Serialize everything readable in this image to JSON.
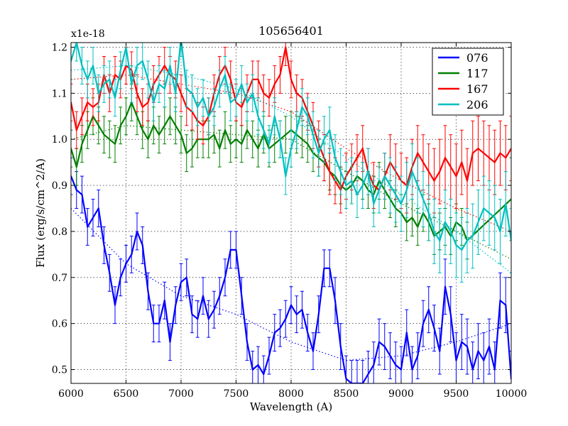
{
  "chart_data": {
    "type": "line",
    "title": "105656401",
    "xlabel": "Wavelength (A)",
    "ylabel": "Flux (erg/s/cm^2/A)",
    "y_offset_label": "x1e-18",
    "xlim": [
      6000,
      10000
    ],
    "ylim": [
      0.47,
      1.21
    ],
    "x_ticks": [
      6000,
      6500,
      7000,
      7500,
      8000,
      8500,
      9000,
      9500,
      10000
    ],
    "y_ticks": [
      0.5,
      0.6,
      0.7,
      0.8,
      0.9,
      1.0,
      1.1,
      1.2
    ],
    "y_tick_labels": [
      "0.5",
      "0.6",
      "0.7",
      "0.8",
      "0.9",
      "1.0",
      "1.1",
      "1.2"
    ],
    "grid": true,
    "legend_position": "top-right",
    "series": [
      {
        "name": "076",
        "color": "#0000ff",
        "x": [
          6000,
          6050,
          6100,
          6150,
          6200,
          6250,
          6300,
          6350,
          6400,
          6450,
          6500,
          6550,
          6600,
          6650,
          6700,
          6750,
          6800,
          6850,
          6900,
          6950,
          7000,
          7050,
          7100,
          7150,
          7200,
          7250,
          7300,
          7350,
          7400,
          7450,
          7500,
          7550,
          7600,
          7650,
          7700,
          7750,
          7800,
          7850,
          7900,
          7950,
          8000,
          8050,
          8100,
          8150,
          8200,
          8250,
          8300,
          8350,
          8400,
          8450,
          8500,
          8550,
          8600,
          8650,
          8700,
          8750,
          8800,
          8850,
          8900,
          8950,
          9000,
          9050,
          9100,
          9150,
          9200,
          9250,
          9300,
          9350,
          9400,
          9450,
          9500,
          9550,
          9600,
          9650,
          9700,
          9750,
          9800,
          9850,
          9900,
          9950,
          10000
        ],
        "y": [
          0.92,
          0.89,
          0.88,
          0.81,
          0.83,
          0.85,
          0.77,
          0.71,
          0.64,
          0.7,
          0.73,
          0.75,
          0.8,
          0.77,
          0.67,
          0.6,
          0.6,
          0.65,
          0.56,
          0.64,
          0.69,
          0.7,
          0.62,
          0.61,
          0.66,
          0.61,
          0.63,
          0.66,
          0.7,
          0.76,
          0.76,
          0.66,
          0.56,
          0.5,
          0.51,
          0.49,
          0.53,
          0.58,
          0.59,
          0.61,
          0.64,
          0.62,
          0.63,
          0.58,
          0.54,
          0.62,
          0.72,
          0.72,
          0.65,
          0.55,
          0.48,
          0.47,
          0.47,
          0.47,
          0.49,
          0.51,
          0.56,
          0.55,
          0.53,
          0.51,
          0.5,
          0.58,
          0.5,
          0.53,
          0.6,
          0.63,
          0.59,
          0.54,
          0.68,
          0.62,
          0.52,
          0.56,
          0.55,
          0.5,
          0.54,
          0.52,
          0.55,
          0.5,
          0.65,
          0.64,
          0.48
        ],
        "err": [
          0.04,
          0.04,
          0.04,
          0.04,
          0.04,
          0.04,
          0.04,
          0.04,
          0.04,
          0.04,
          0.04,
          0.04,
          0.04,
          0.04,
          0.04,
          0.04,
          0.04,
          0.04,
          0.04,
          0.04,
          0.04,
          0.04,
          0.04,
          0.04,
          0.04,
          0.04,
          0.04,
          0.04,
          0.04,
          0.04,
          0.04,
          0.04,
          0.04,
          0.04,
          0.04,
          0.04,
          0.04,
          0.04,
          0.04,
          0.04,
          0.04,
          0.04,
          0.04,
          0.04,
          0.04,
          0.04,
          0.04,
          0.04,
          0.05,
          0.05,
          0.05,
          0.05,
          0.05,
          0.05,
          0.05,
          0.05,
          0.05,
          0.05,
          0.05,
          0.05,
          0.05,
          0.05,
          0.05,
          0.05,
          0.05,
          0.05,
          0.05,
          0.05,
          0.06,
          0.06,
          0.06,
          0.06,
          0.06,
          0.06,
          0.06,
          0.06,
          0.06,
          0.06,
          0.06,
          0.06,
          0.06
        ],
        "fit_x": [
          6000,
          6500,
          7000,
          7500,
          8000,
          8500,
          9000,
          9500,
          10000
        ],
        "fit_y": [
          0.85,
          0.73,
          0.66,
          0.62,
          0.56,
          0.52,
          0.53,
          0.56,
          0.6
        ]
      },
      {
        "name": "117",
        "color": "#008000",
        "x": [
          6000,
          6050,
          6100,
          6150,
          6200,
          6250,
          6300,
          6350,
          6400,
          6450,
          6500,
          6550,
          6600,
          6650,
          6700,
          6750,
          6800,
          6850,
          6900,
          6950,
          7000,
          7050,
          7100,
          7150,
          7200,
          7250,
          7300,
          7350,
          7400,
          7450,
          7500,
          7550,
          7600,
          7650,
          7700,
          7750,
          7800,
          7850,
          7900,
          7950,
          8000,
          8050,
          8100,
          8150,
          8200,
          8250,
          8300,
          8350,
          8400,
          8450,
          8500,
          8550,
          8600,
          8650,
          8700,
          8750,
          8800,
          8850,
          8900,
          8950,
          9000,
          9050,
          9100,
          9150,
          9200,
          9250,
          9300,
          9350,
          9400,
          9450,
          9500,
          9550,
          9600,
          10000
        ],
        "y": [
          0.98,
          0.94,
          0.99,
          1.02,
          1.05,
          1.03,
          1.01,
          1.0,
          0.99,
          1.03,
          1.05,
          1.08,
          1.05,
          1.02,
          1.0,
          1.03,
          1.01,
          1.03,
          1.05,
          1.03,
          1.01,
          0.97,
          0.98,
          1.0,
          1.0,
          1.0,
          1.01,
          0.98,
          1.02,
          0.99,
          1.0,
          0.99,
          1.02,
          1.0,
          0.98,
          1.01,
          0.98,
          0.99,
          1.0,
          1.01,
          1.02,
          1.01,
          1.0,
          0.99,
          0.97,
          0.96,
          0.95,
          0.93,
          0.92,
          0.9,
          0.89,
          0.9,
          0.92,
          0.91,
          0.89,
          0.88,
          0.91,
          0.89,
          0.87,
          0.85,
          0.84,
          0.82,
          0.83,
          0.81,
          0.84,
          0.82,
          0.79,
          0.8,
          0.81,
          0.79,
          0.82,
          0.81,
          0.78,
          0.87
        ],
        "err": [
          0.04,
          0.04,
          0.04,
          0.04,
          0.04,
          0.04,
          0.04,
          0.04,
          0.04,
          0.04,
          0.04,
          0.04,
          0.04,
          0.04,
          0.04,
          0.04,
          0.04,
          0.04,
          0.04,
          0.04,
          0.04,
          0.04,
          0.04,
          0.04,
          0.04,
          0.04,
          0.04,
          0.04,
          0.04,
          0.04,
          0.04,
          0.04,
          0.04,
          0.04,
          0.04,
          0.04,
          0.04,
          0.04,
          0.04,
          0.04,
          0.04,
          0.04,
          0.04,
          0.04,
          0.04,
          0.04,
          0.04,
          0.04,
          0.04,
          0.04,
          0.04,
          0.04,
          0.04,
          0.04,
          0.04,
          0.04,
          0.04,
          0.04,
          0.04,
          0.04,
          0.04,
          0.04,
          0.04,
          0.04,
          0.04,
          0.04,
          0.04,
          0.04,
          0.04,
          0.04,
          0.04,
          0.04,
          0.04,
          0.09
        ],
        "fit_x": [
          6000,
          6500,
          7000,
          7500,
          8000,
          8500,
          9000,
          9500,
          10000
        ],
        "fit_y": [
          1.0,
          1.03,
          1.02,
          1.01,
          1.0,
          0.93,
          0.86,
          0.8,
          0.74
        ]
      },
      {
        "name": "167",
        "color": "#ff0000",
        "x": [
          6000,
          6050,
          6100,
          6150,
          6200,
          6250,
          6300,
          6350,
          6400,
          6450,
          6500,
          6550,
          6600,
          6650,
          6700,
          6750,
          6800,
          6850,
          6900,
          6950,
          7000,
          7050,
          7100,
          7150,
          7200,
          7250,
          7300,
          7350,
          7400,
          7450,
          7500,
          7550,
          7600,
          7650,
          7700,
          7750,
          7800,
          7850,
          7900,
          7950,
          8000,
          8050,
          8100,
          8150,
          8200,
          8250,
          8300,
          8350,
          8400,
          8450,
          8500,
          8550,
          8600,
          8650,
          8700,
          8750,
          8800,
          8850,
          8900,
          8950,
          9000,
          9050,
          9100,
          9150,
          9200,
          9250,
          9300,
          9350,
          9400,
          9450,
          9500,
          9550,
          9600,
          9650,
          9700,
          9750,
          9800,
          9850,
          9900,
          9950,
          10000
        ],
        "y": [
          1.08,
          1.02,
          1.05,
          1.08,
          1.07,
          1.08,
          1.14,
          1.1,
          1.14,
          1.13,
          1.16,
          1.15,
          1.1,
          1.07,
          1.08,
          1.12,
          1.14,
          1.16,
          1.14,
          1.13,
          1.1,
          1.07,
          1.06,
          1.04,
          1.03,
          1.05,
          1.1,
          1.14,
          1.16,
          1.13,
          1.08,
          1.07,
          1.1,
          1.13,
          1.13,
          1.1,
          1.09,
          1.12,
          1.14,
          1.2,
          1.13,
          1.1,
          1.09,
          1.06,
          1.03,
          0.99,
          0.96,
          0.93,
          0.91,
          0.89,
          0.92,
          0.94,
          0.96,
          0.98,
          0.93,
          0.9,
          0.89,
          0.92,
          0.95,
          0.93,
          0.91,
          0.9,
          0.94,
          0.97,
          0.95,
          0.93,
          0.91,
          0.93,
          0.96,
          0.94,
          0.92,
          0.95,
          0.91,
          0.97,
          0.98,
          0.97,
          0.96,
          0.95,
          0.97,
          0.96,
          0.98
        ],
        "err": [
          0.04,
          0.04,
          0.04,
          0.04,
          0.04,
          0.04,
          0.04,
          0.04,
          0.04,
          0.04,
          0.04,
          0.04,
          0.04,
          0.04,
          0.04,
          0.04,
          0.04,
          0.04,
          0.04,
          0.04,
          0.04,
          0.04,
          0.04,
          0.04,
          0.04,
          0.04,
          0.04,
          0.04,
          0.04,
          0.04,
          0.04,
          0.04,
          0.04,
          0.04,
          0.04,
          0.04,
          0.04,
          0.04,
          0.04,
          0.04,
          0.04,
          0.04,
          0.04,
          0.04,
          0.05,
          0.05,
          0.05,
          0.05,
          0.05,
          0.05,
          0.05,
          0.05,
          0.05,
          0.05,
          0.05,
          0.05,
          0.05,
          0.05,
          0.06,
          0.06,
          0.06,
          0.06,
          0.06,
          0.06,
          0.06,
          0.06,
          0.07,
          0.07,
          0.07,
          0.07,
          0.07,
          0.07,
          0.07,
          0.07,
          0.07,
          0.07,
          0.07,
          0.07,
          0.07,
          0.07,
          0.07
        ],
        "fit_x": [
          6000,
          6500,
          7000,
          7500,
          8000,
          8500,
          9000,
          9500,
          10000
        ],
        "fit_y": [
          1.13,
          1.14,
          1.12,
          1.1,
          1.06,
          0.98,
          0.91,
          0.85,
          0.8
        ]
      },
      {
        "name": "206",
        "color": "#00bfbf",
        "x": [
          6000,
          6050,
          6100,
          6150,
          6200,
          6250,
          6300,
          6350,
          6400,
          6450,
          6500,
          6550,
          6600,
          6650,
          6700,
          6750,
          6800,
          6850,
          6900,
          6950,
          7000,
          7050,
          7100,
          7150,
          7200,
          7250,
          7300,
          7350,
          7400,
          7450,
          7500,
          7550,
          7600,
          7650,
          7700,
          7750,
          7800,
          7850,
          7900,
          7950,
          8000,
          8050,
          8100,
          8150,
          8200,
          8250,
          8300,
          8350,
          8400,
          8450,
          8500,
          8550,
          8600,
          8650,
          8700,
          8750,
          8800,
          8850,
          8900,
          8950,
          9000,
          9050,
          9100,
          9150,
          9200,
          9250,
          9300,
          9350,
          9400,
          9450,
          9500,
          9550,
          9600,
          9650,
          9700,
          9750,
          9800,
          9850,
          9900,
          9950,
          10000
        ],
        "y": [
          1.17,
          1.21,
          1.16,
          1.13,
          1.16,
          1.1,
          1.12,
          1.13,
          1.09,
          1.15,
          1.2,
          1.12,
          1.16,
          1.17,
          1.13,
          1.08,
          1.12,
          1.11,
          1.16,
          1.1,
          1.22,
          1.11,
          1.1,
          1.07,
          1.09,
          1.05,
          1.07,
          1.11,
          1.14,
          1.08,
          1.09,
          1.12,
          1.08,
          1.1,
          1.05,
          1.02,
          0.99,
          1.05,
          1.0,
          0.92,
          0.98,
          1.02,
          1.07,
          1.05,
          1.01,
          0.97,
          1.0,
          1.02,
          0.96,
          0.93,
          0.9,
          0.91,
          0.88,
          0.9,
          0.93,
          0.86,
          0.89,
          0.92,
          0.9,
          0.88,
          0.86,
          0.89,
          0.93,
          0.9,
          0.87,
          0.84,
          0.8,
          0.78,
          0.82,
          0.8,
          0.77,
          0.76,
          0.78,
          0.79,
          0.82,
          0.85,
          0.84,
          0.83,
          0.8,
          0.86,
          0.78
        ],
        "err": [
          0.04,
          0.04,
          0.04,
          0.04,
          0.04,
          0.04,
          0.04,
          0.04,
          0.04,
          0.04,
          0.04,
          0.04,
          0.04,
          0.04,
          0.04,
          0.04,
          0.04,
          0.04,
          0.04,
          0.04,
          0.04,
          0.04,
          0.04,
          0.04,
          0.04,
          0.04,
          0.04,
          0.04,
          0.04,
          0.04,
          0.04,
          0.04,
          0.04,
          0.04,
          0.04,
          0.04,
          0.04,
          0.04,
          0.04,
          0.04,
          0.04,
          0.04,
          0.04,
          0.04,
          0.05,
          0.05,
          0.05,
          0.05,
          0.05,
          0.05,
          0.05,
          0.05,
          0.05,
          0.05,
          0.05,
          0.05,
          0.05,
          0.05,
          0.06,
          0.06,
          0.06,
          0.06,
          0.06,
          0.06,
          0.06,
          0.06,
          0.07,
          0.07,
          0.07,
          0.07,
          0.07,
          0.07,
          0.07,
          0.07,
          0.07,
          0.07,
          0.07,
          0.07,
          0.07,
          0.07,
          0.07
        ],
        "fit_x": [
          6000,
          6500,
          7000,
          7500,
          8000,
          8500,
          9000,
          9500,
          10000
        ],
        "fit_y": [
          1.15,
          1.16,
          1.14,
          1.11,
          1.05,
          0.96,
          0.88,
          0.8,
          0.71
        ]
      }
    ]
  }
}
